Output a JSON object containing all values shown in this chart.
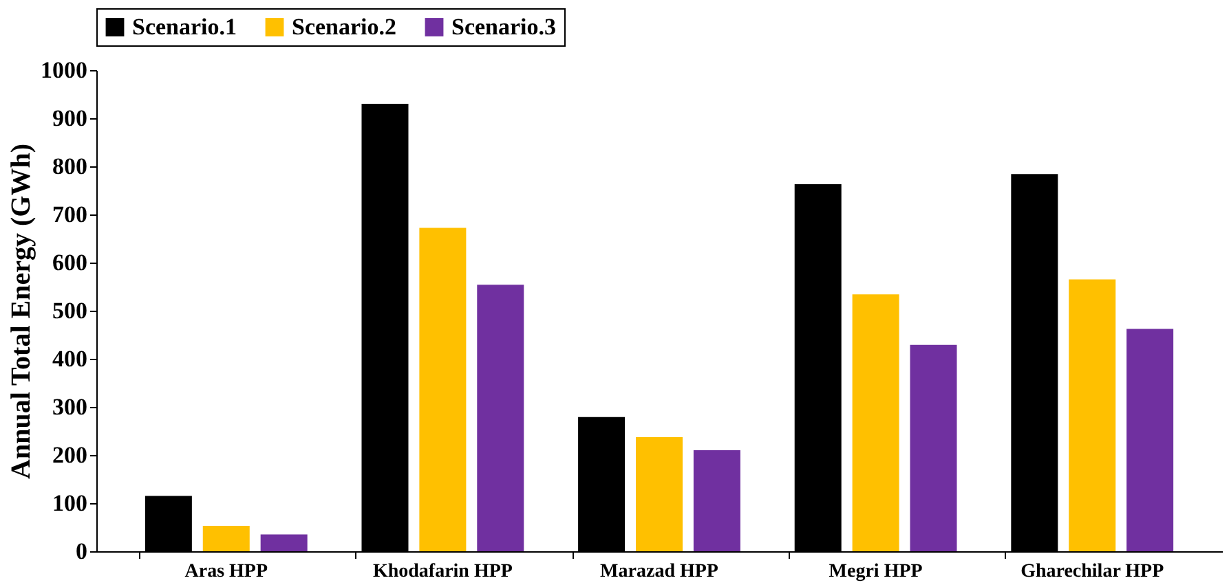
{
  "chart_data": {
    "type": "bar",
    "ylabel": "Annual Total Energy (GWh)",
    "categories": [
      "Aras HPP",
      "Khodafarin HPP",
      "Marazad HPP",
      "Megri HPP",
      "Gharechilar HPP"
    ],
    "series": [
      {
        "name": "Scenario.1",
        "color": "#000000",
        "values": [
          115,
          930,
          279,
          763,
          784
        ]
      },
      {
        "name": "Scenario.2",
        "color": "#ffc000",
        "values": [
          53,
          672,
          237,
          534,
          565
        ]
      },
      {
        "name": "Scenario.3",
        "color": "#7030a0",
        "values": [
          35,
          554,
          210,
          429,
          462
        ]
      }
    ],
    "ylim": [
      0,
      1000
    ],
    "yticks": [
      0,
      100,
      200,
      300,
      400,
      500,
      600,
      700,
      800,
      900,
      1000
    ],
    "grid": false,
    "legend": "top"
  }
}
